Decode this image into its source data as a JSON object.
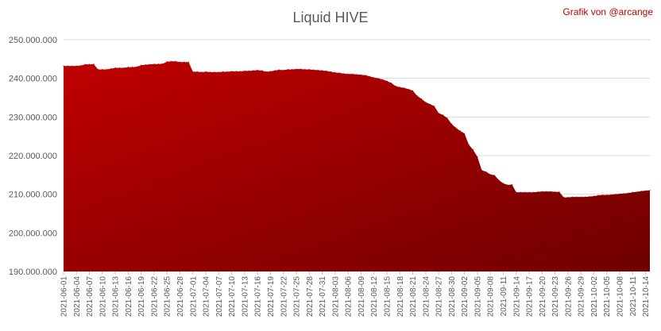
{
  "chart_data": {
    "type": "area",
    "title": "Liquid HIVE",
    "credit": "Grafik von @arcange",
    "ylim": [
      190000000,
      250000000
    ],
    "yticks": [
      {
        "value": 190000000,
        "label": "190.000.000"
      },
      {
        "value": 200000000,
        "label": "200.000.000"
      },
      {
        "value": 210000000,
        "label": "210.000.000"
      },
      {
        "value": 220000000,
        "label": "220.000.000"
      },
      {
        "value": 230000000,
        "label": "230.000.000"
      },
      {
        "value": 240000000,
        "label": "240.000.000"
      },
      {
        "value": 250000000,
        "label": "250.000.000"
      }
    ],
    "grid": true,
    "x_tick_labels": [
      "2021-06-01",
      "2021-06-04",
      "2021-06-07",
      "2021-06-10",
      "2021-06-13",
      "2021-06-16",
      "2021-06-19",
      "2021-06-22",
      "2021-06-25",
      "2021-06-28",
      "2021-07-01",
      "2021-07-04",
      "2021-07-07",
      "2021-07-10",
      "2021-07-13",
      "2021-07-16",
      "2021-07-19",
      "2021-07-22",
      "2021-07-25",
      "2021-07-28",
      "2021-07-31",
      "2021-08-03",
      "2021-08-06",
      "2021-08-09",
      "2021-08-12",
      "2021-08-15",
      "2021-08-18",
      "2021-08-21",
      "2021-08-24",
      "2021-08-27",
      "2021-08-30",
      "2021-09-02",
      "2021-09-05",
      "2021-09-08",
      "2021-09-11",
      "2021-09-14",
      "2021-09-17",
      "2021-09-20",
      "2021-09-23",
      "2021-09-26",
      "2021-09-29",
      "2021-10-02",
      "2021-10-05",
      "2021-10-08",
      "2021-10-11",
      "2021-10-14"
    ],
    "series": [
      {
        "color": "#c00000",
        "color_dark": "#6e0000",
        "x": [
          "2021-06-01",
          "2021-06-02",
          "2021-06-03",
          "2021-06-04",
          "2021-06-05",
          "2021-06-06",
          "2021-06-07",
          "2021-06-08",
          "2021-06-09",
          "2021-06-10",
          "2021-06-11",
          "2021-06-12",
          "2021-06-13",
          "2021-06-14",
          "2021-06-15",
          "2021-06-16",
          "2021-06-17",
          "2021-06-18",
          "2021-06-19",
          "2021-06-20",
          "2021-06-21",
          "2021-06-22",
          "2021-06-23",
          "2021-06-24",
          "2021-06-25",
          "2021-06-26",
          "2021-06-27",
          "2021-06-28",
          "2021-06-29",
          "2021-06-30",
          "2021-07-01",
          "2021-07-02",
          "2021-07-03",
          "2021-07-04",
          "2021-07-05",
          "2021-07-06",
          "2021-07-07",
          "2021-07-08",
          "2021-07-09",
          "2021-07-10",
          "2021-07-11",
          "2021-07-12",
          "2021-07-13",
          "2021-07-14",
          "2021-07-15",
          "2021-07-16",
          "2021-07-17",
          "2021-07-18",
          "2021-07-19",
          "2021-07-20",
          "2021-07-21",
          "2021-07-22",
          "2021-07-23",
          "2021-07-24",
          "2021-07-25",
          "2021-07-26",
          "2021-07-27",
          "2021-07-28",
          "2021-07-29",
          "2021-07-30",
          "2021-07-31",
          "2021-08-01",
          "2021-08-02",
          "2021-08-03",
          "2021-08-04",
          "2021-08-05",
          "2021-08-06",
          "2021-08-07",
          "2021-08-08",
          "2021-08-09",
          "2021-08-10",
          "2021-08-11",
          "2021-08-12",
          "2021-08-13",
          "2021-08-14",
          "2021-08-15",
          "2021-08-16",
          "2021-08-17",
          "2021-08-18",
          "2021-08-19",
          "2021-08-20",
          "2021-08-21",
          "2021-08-22",
          "2021-08-23",
          "2021-08-24",
          "2021-08-25",
          "2021-08-26",
          "2021-08-27",
          "2021-08-28",
          "2021-08-29",
          "2021-08-30",
          "2021-08-31",
          "2021-09-01",
          "2021-09-02",
          "2021-09-03",
          "2021-09-04",
          "2021-09-05",
          "2021-09-06",
          "2021-09-07",
          "2021-09-08",
          "2021-09-09",
          "2021-09-10",
          "2021-09-11",
          "2021-09-12",
          "2021-09-13",
          "2021-09-14",
          "2021-09-15",
          "2021-09-16",
          "2021-09-17",
          "2021-09-18",
          "2021-09-19",
          "2021-09-20",
          "2021-09-21",
          "2021-09-22",
          "2021-09-23",
          "2021-09-24",
          "2021-09-25",
          "2021-09-26",
          "2021-09-27",
          "2021-09-28",
          "2021-09-29",
          "2021-09-30",
          "2021-10-01",
          "2021-10-02",
          "2021-10-03",
          "2021-10-04",
          "2021-10-05",
          "2021-10-06",
          "2021-10-07",
          "2021-10-08",
          "2021-10-09",
          "2021-10-10",
          "2021-10-11",
          "2021-10-12",
          "2021-10-13",
          "2021-10-14",
          "2021-10-15"
        ],
        "values": [
          243200000,
          243200000,
          243200000,
          243200000,
          243300000,
          243600000,
          243600000,
          243700000,
          242300000,
          242300000,
          242300000,
          242500000,
          242700000,
          242700000,
          242700000,
          242900000,
          242900000,
          243000000,
          243400000,
          243500000,
          243600000,
          243700000,
          243700000,
          243800000,
          244300000,
          244400000,
          244400000,
          244200000,
          244200000,
          244200000,
          241700000,
          241700000,
          241600000,
          241700000,
          241600000,
          241600000,
          241600000,
          241700000,
          241700000,
          241800000,
          241800000,
          241800000,
          241900000,
          241900000,
          242000000,
          242100000,
          242000000,
          241700000,
          241800000,
          242000000,
          242200000,
          242100000,
          242300000,
          242300000,
          242400000,
          242400000,
          242300000,
          242300000,
          242200000,
          242100000,
          242000000,
          241900000,
          241700000,
          241500000,
          241400000,
          241200000,
          241100000,
          241100000,
          241000000,
          240900000,
          240800000,
          240500000,
          240200000,
          240000000,
          239700000,
          239300000,
          238800000,
          238000000,
          237700000,
          237500000,
          237200000,
          236800000,
          235500000,
          234700000,
          233800000,
          233300000,
          232800000,
          231000000,
          230500000,
          229700000,
          228200000,
          227200000,
          226400000,
          225700000,
          222800000,
          221500000,
          219700000,
          216200000,
          215800000,
          215100000,
          214900000,
          213600000,
          212800000,
          212400000,
          212500000,
          210500000,
          210500000,
          210500000,
          210500000,
          210500000,
          210600000,
          210700000,
          210700000,
          210700000,
          210600000,
          210600000,
          209200000,
          209200000,
          209300000,
          209300000,
          209300000,
          209300000,
          209400000,
          209500000,
          209700000,
          209800000,
          209800000,
          209900000,
          210000000,
          210100000,
          210200000,
          210300000,
          210500000,
          210600000,
          210800000,
          210900000,
          211000000
        ]
      }
    ]
  }
}
